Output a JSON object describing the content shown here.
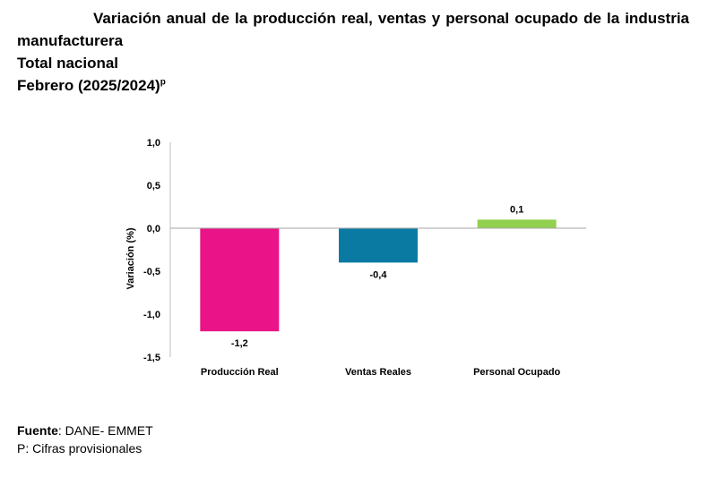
{
  "header": {
    "title_line1": "Variación anual de la producción real, ventas y personal ocupado de la industria",
    "title_line2": "manufacturera",
    "title_line3": "Total nacional",
    "title_line4": "Febrero (2025/2024)",
    "title_superscript": "p"
  },
  "chart_data": {
    "type": "bar",
    "categories": [
      "Producción Real",
      "Ventas Reales",
      "Personal Ocupado"
    ],
    "values": [
      -1.2,
      -0.4,
      0.1
    ],
    "value_labels": [
      "-1,2",
      "-0,4",
      "0,1"
    ],
    "colors": [
      "#ea1388",
      "#0a7aa3",
      "#92d050"
    ],
    "ylabel": "Variación (%)",
    "xlabel": "",
    "ylim": [
      -1.5,
      1.0
    ],
    "yticks": [
      1.0,
      0.5,
      0.0,
      -0.5,
      -1.0,
      -1.5
    ],
    "ytick_labels": [
      "1,0",
      "0,5",
      "0,0",
      "-0,5",
      "-1,0",
      "-1,5"
    ],
    "grid": false,
    "legend": "none"
  },
  "footer": {
    "source_label": "Fuente",
    "source_text": ": DANE- EMMET",
    "note": "P: Cifras provisionales"
  }
}
